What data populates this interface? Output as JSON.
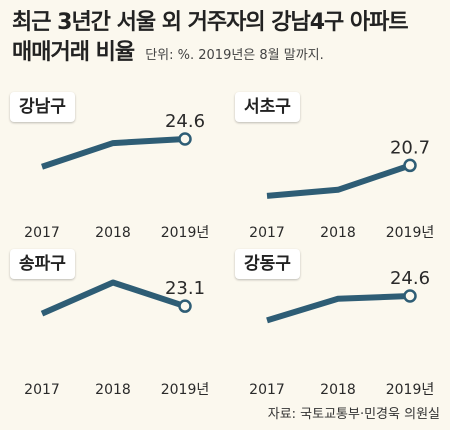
{
  "title": {
    "line1": "최근 3년간 서울 외 거주자의 강남4구 아파트",
    "line2": "매매거래 비율",
    "note": "단위: %. 2019년은 8월 말까지."
  },
  "colors": {
    "line": "#2e5d75",
    "text": "#2a2a2a",
    "background": "#fbf8ee"
  },
  "chart_data": [
    {
      "type": "line",
      "title": "강남구",
      "categories": [
        "2017",
        "2018",
        "2019년"
      ],
      "values": [
        20.5,
        24.0,
        24.6
      ],
      "value_label": "24.6"
    },
    {
      "type": "line",
      "title": "서초구",
      "categories": [
        "2017",
        "2018",
        "2019년"
      ],
      "values": [
        16.2,
        17.1,
        20.7
      ],
      "value_label": "20.7"
    },
    {
      "type": "line",
      "title": "송파구",
      "categories": [
        "2017",
        "2018",
        "2019년"
      ],
      "values": [
        22.0,
        26.6,
        23.1
      ],
      "value_label": "23.1"
    },
    {
      "type": "line",
      "title": "강동구",
      "categories": [
        "2017",
        "2018",
        "2019년"
      ],
      "values": [
        21.0,
        24.2,
        24.6
      ],
      "value_label": "24.6"
    }
  ],
  "source": "자료: 국토교통부·민경욱 의원실"
}
